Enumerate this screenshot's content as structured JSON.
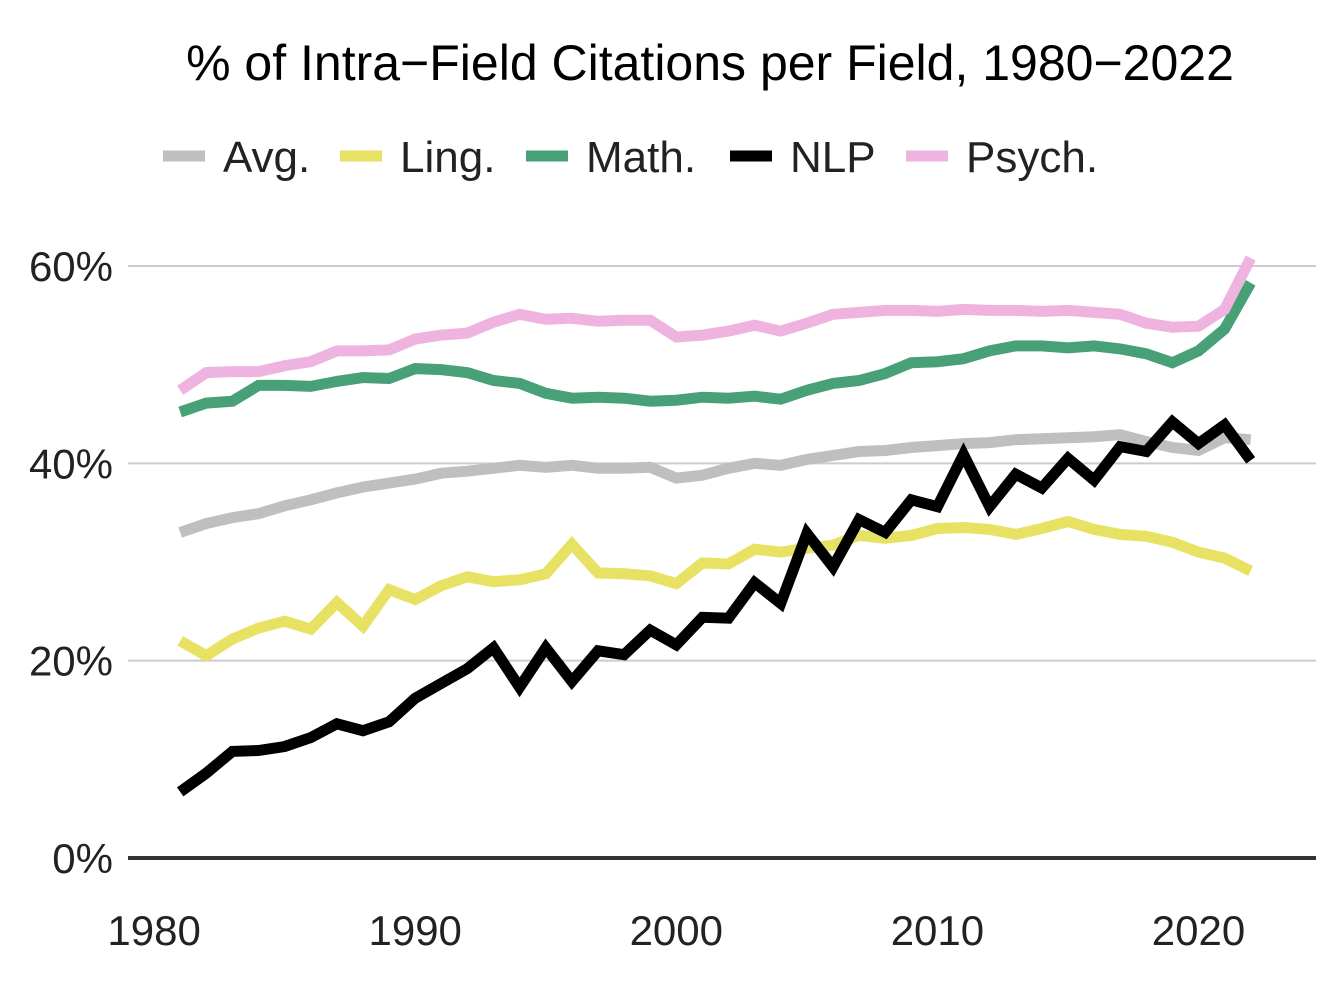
{
  "chart_data": {
    "type": "line",
    "title": "% of Intra−Field Citations per Field, 1980−2022",
    "xlabel": "",
    "ylabel": "",
    "xlim": [
      1979,
      2024.5
    ],
    "ylim": [
      0,
      60
    ],
    "xticks": [
      1980,
      1990,
      2000,
      2010,
      2020
    ],
    "xtick_labels": [
      "1980",
      "1990",
      "2000",
      "2010",
      "2020"
    ],
    "yticks": [
      0,
      20,
      40,
      60
    ],
    "ytick_labels": [
      "0%",
      "20%",
      "40%",
      "60%"
    ],
    "grid": "horizontal",
    "legend_position": "top",
    "x": [
      1981,
      1982,
      1983,
      1984,
      1985,
      1986,
      1987,
      1988,
      1989,
      1990,
      1991,
      1992,
      1993,
      1994,
      1995,
      1996,
      1997,
      1998,
      1999,
      2000,
      2001,
      2002,
      2003,
      2004,
      2005,
      2006,
      2007,
      2008,
      2009,
      2010,
      2011,
      2012,
      2013,
      2014,
      2015,
      2016,
      2017,
      2018,
      2019,
      2020,
      2021,
      2022
    ],
    "series": [
      {
        "name": "Avg.",
        "color": "#bfbfbf",
        "values": [
          33.0,
          33.9,
          34.5,
          34.9,
          35.7,
          36.3,
          37.0,
          37.6,
          38.0,
          38.4,
          39.0,
          39.2,
          39.5,
          39.8,
          39.6,
          39.8,
          39.5,
          39.5,
          39.6,
          38.5,
          38.8,
          39.5,
          40.0,
          39.8,
          40.4,
          40.8,
          41.2,
          41.3,
          41.6,
          41.8,
          42.0,
          42.1,
          42.4,
          42.5,
          42.6,
          42.7,
          42.9,
          42.2,
          41.6,
          41.3,
          42.6,
          42.4
        ]
      },
      {
        "name": "Ling.",
        "color": "#e8e264",
        "values": [
          22.0,
          20.5,
          22.2,
          23.3,
          24.0,
          23.2,
          25.9,
          23.5,
          27.2,
          26.2,
          27.6,
          28.5,
          28.0,
          28.2,
          28.8,
          31.8,
          28.9,
          28.8,
          28.6,
          27.8,
          29.9,
          29.8,
          31.3,
          31.0,
          31.4,
          31.7,
          32.7,
          32.4,
          32.7,
          33.4,
          33.5,
          33.3,
          32.8,
          33.4,
          34.1,
          33.3,
          32.8,
          32.6,
          32.0,
          31.0,
          30.4,
          29.1
        ]
      },
      {
        "name": "Math.",
        "color": "#48a077",
        "values": [
          45.2,
          46.1,
          46.3,
          47.9,
          47.9,
          47.8,
          48.3,
          48.7,
          48.6,
          49.6,
          49.5,
          49.2,
          48.4,
          48.1,
          47.1,
          46.6,
          46.7,
          46.6,
          46.3,
          46.4,
          46.7,
          46.6,
          46.8,
          46.5,
          47.4,
          48.1,
          48.4,
          49.1,
          50.2,
          50.3,
          50.6,
          51.4,
          51.9,
          51.9,
          51.7,
          51.9,
          51.6,
          51.1,
          50.2,
          51.4,
          53.6,
          58.3
        ]
      },
      {
        "name": "NLP",
        "color": "#000000",
        "values": [
          6.7,
          8.6,
          10.8,
          10.9,
          11.3,
          12.2,
          13.6,
          12.9,
          13.8,
          16.2,
          17.7,
          19.2,
          21.3,
          17.3,
          21.3,
          17.9,
          21.0,
          20.6,
          23.1,
          21.6,
          24.4,
          24.3,
          27.9,
          25.8,
          32.9,
          29.5,
          34.3,
          33.0,
          36.3,
          35.6,
          40.9,
          35.6,
          38.9,
          37.5,
          40.5,
          38.3,
          41.7,
          41.2,
          44.2,
          42.0,
          43.9,
          40.3
        ]
      },
      {
        "name": "Psych.",
        "color": "#efb3df",
        "values": [
          47.4,
          49.2,
          49.3,
          49.3,
          49.9,
          50.3,
          51.4,
          51.4,
          51.5,
          52.6,
          53.0,
          53.2,
          54.3,
          55.1,
          54.6,
          54.7,
          54.4,
          54.5,
          54.5,
          52.8,
          53.0,
          53.4,
          54.0,
          53.4,
          54.2,
          55.1,
          55.3,
          55.5,
          55.5,
          55.4,
          55.6,
          55.5,
          55.5,
          55.4,
          55.5,
          55.3,
          55.1,
          54.2,
          53.8,
          53.9,
          55.6,
          60.8
        ]
      }
    ]
  }
}
